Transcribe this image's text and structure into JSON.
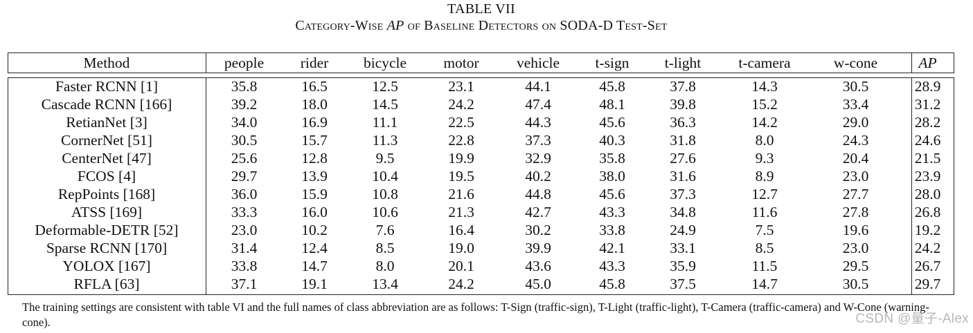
{
  "table": {
    "number": "TABLE VII",
    "caption_prefix": "Category-Wise",
    "caption_ap": "AP",
    "caption_suffix": "of Baseline Detectors on SODA-D Test-Set",
    "headers": [
      "Method",
      "people",
      "rider",
      "bicycle",
      "motor",
      "vehicle",
      "t-sign",
      "t-light",
      "t-camera",
      "w-cone",
      "AP"
    ],
    "rows": [
      [
        "Faster RCNN [1]",
        "35.8",
        "16.5",
        "12.5",
        "23.1",
        "44.1",
        "45.8",
        "37.8",
        "14.3",
        "30.5",
        "28.9"
      ],
      [
        "Cascade RCNN [166]",
        "39.2",
        "18.0",
        "14.5",
        "24.2",
        "47.4",
        "48.1",
        "39.8",
        "15.2",
        "33.4",
        "31.2"
      ],
      [
        "RetianNet [3]",
        "34.0",
        "16.9",
        "11.1",
        "22.5",
        "44.3",
        "45.6",
        "36.3",
        "14.2",
        "29.0",
        "28.2"
      ],
      [
        "CornerNet [51]",
        "30.5",
        "15.7",
        "11.3",
        "22.8",
        "37.3",
        "40.3",
        "31.8",
        "8.0",
        "24.3",
        "24.6"
      ],
      [
        "CenterNet [47]",
        "25.6",
        "12.8",
        "9.5",
        "19.9",
        "32.9",
        "35.8",
        "27.6",
        "9.3",
        "20.4",
        "21.5"
      ],
      [
        "FCOS [4]",
        "29.7",
        "13.9",
        "10.4",
        "19.5",
        "40.2",
        "38.0",
        "31.6",
        "8.9",
        "23.0",
        "23.9"
      ],
      [
        "RepPoints [168]",
        "36.0",
        "15.9",
        "10.8",
        "21.6",
        "44.8",
        "45.6",
        "37.3",
        "12.7",
        "27.7",
        "28.0"
      ],
      [
        "ATSS [169]",
        "33.3",
        "16.0",
        "10.6",
        "21.3",
        "42.7",
        "43.3",
        "34.8",
        "11.6",
        "27.8",
        "26.8"
      ],
      [
        "Deformable-DETR [52]",
        "23.0",
        "10.2",
        "7.6",
        "16.4",
        "30.2",
        "33.8",
        "24.9",
        "7.5",
        "19.6",
        "19.2"
      ],
      [
        "Sparse RCNN [170]",
        "31.4",
        "12.4",
        "8.5",
        "19.0",
        "39.9",
        "42.1",
        "33.1",
        "8.5",
        "23.0",
        "24.2"
      ],
      [
        "YOLOX [167]",
        "33.8",
        "14.7",
        "8.0",
        "20.1",
        "43.6",
        "43.3",
        "35.9",
        "11.5",
        "29.5",
        "26.7"
      ],
      [
        "RFLA [63]",
        "37.1",
        "19.1",
        "13.4",
        "24.2",
        "45.0",
        "45.8",
        "37.5",
        "14.7",
        "30.5",
        "29.7"
      ]
    ]
  },
  "footnote": "The training settings are consistent with table VI and the full names of class abbreviation are as follows: T-Sign (traffic-sign), T-Light (traffic-light), T-Camera (traffic-camera) and W-Cone (warning-cone).",
  "watermark": "CSDN @量子-Alex"
}
